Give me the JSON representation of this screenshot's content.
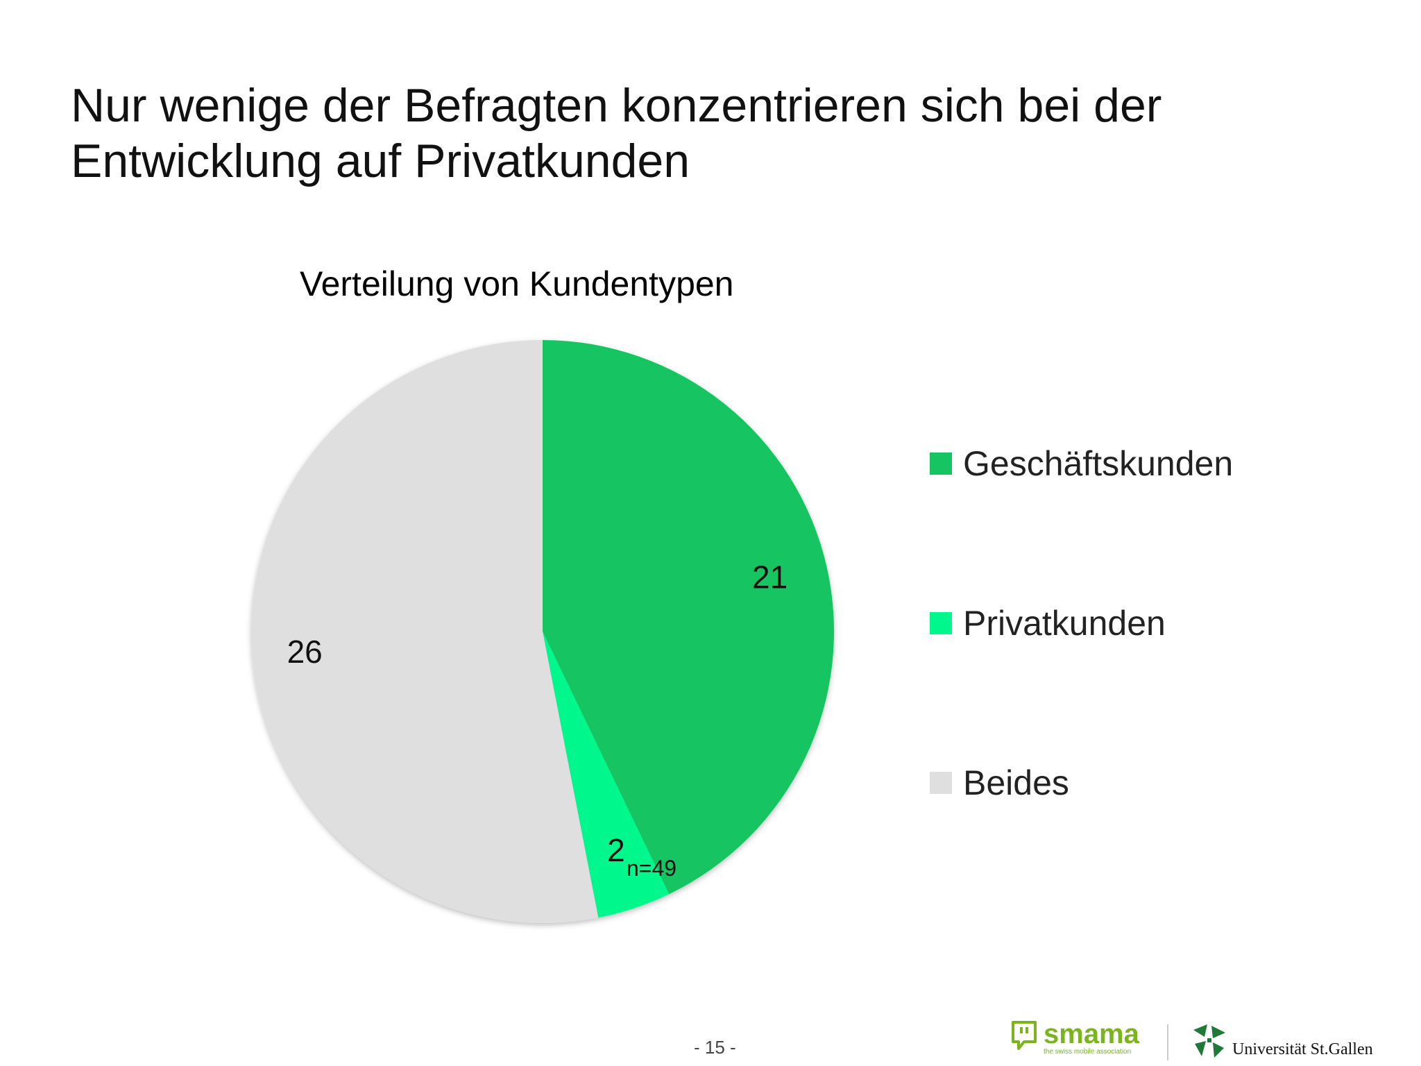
{
  "slide": {
    "title_line1": "Nur wenige der Befragten konzentrieren sich bei der",
    "title_line2": "Entwicklung auf Privatkunden",
    "page_number": "- 15 -"
  },
  "chart_data": {
    "type": "pie",
    "title": "Verteilung von Kundentypen",
    "categories": [
      "Geschäftskunden",
      "Privatkunden",
      "Beides"
    ],
    "values": [
      21,
      2,
      26
    ],
    "colors": [
      "#17c462",
      "#00f78b",
      "#e0dfe0"
    ],
    "note": "n=49",
    "legend_position": "right"
  },
  "logos": {
    "smama_name": "smama",
    "smama_tagline": "the swiss mobile association",
    "hsg_name": "Universität St.Gallen"
  }
}
